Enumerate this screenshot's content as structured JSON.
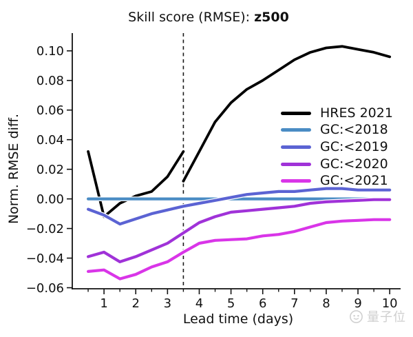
{
  "chart_data": {
    "type": "line",
    "title": "Skill score (RMSE): z500",
    "title_prefix": "Skill score (RMSE): ",
    "title_variable": "z500",
    "xlabel": "Lead time (days)",
    "ylabel": "Norm. RMSE diff.",
    "xlim": [
      0,
      10.3
    ],
    "ylim": [
      -0.0607,
      0.112
    ],
    "grid": false,
    "legend_position": "center-right",
    "x_major_ticks": [
      1,
      2,
      3,
      4,
      5,
      6,
      7,
      8,
      9,
      10
    ],
    "x_tick_labels": [
      "1",
      "2",
      "3",
      "4",
      "5",
      "6",
      "7",
      "8",
      "9",
      "10"
    ],
    "x_minor_tick_step": 0.5,
    "y_major_ticks": [
      0.1,
      0.08,
      0.06,
      0.04,
      0.02,
      0.0,
      -0.02,
      -0.04,
      -0.06
    ],
    "y_tick_labels": [
      "0.10",
      "0.08",
      "0.06",
      "0.04",
      "0.02",
      "0.00",
      "−0.02",
      "−0.04",
      "−0.06"
    ],
    "vline": {
      "x": 3.5,
      "style": "dashed",
      "color": "#1a1a1a"
    },
    "x": [
      0.5,
      1,
      1.5,
      2,
      2.5,
      3,
      3.5,
      4,
      4.5,
      5,
      5.5,
      6,
      6.5,
      7,
      7.5,
      8,
      8.5,
      9,
      9.5,
      10
    ],
    "series": [
      {
        "name": "HRES 2021",
        "color": "#000000",
        "linewidth": 3.8,
        "segments": [
          {
            "x": [
              0.5,
              1,
              1.5,
              2,
              2.5,
              3,
              3.5
            ],
            "y": [
              0.032,
              -0.012,
              -0.003,
              0.002,
              0.005,
              0.015,
              0.032
            ]
          },
          {
            "x": [
              3.5,
              4,
              4.5,
              5,
              5.5,
              6,
              6.5,
              7,
              7.5,
              8,
              8.5,
              9,
              9.5,
              10
            ],
            "y": [
              0.012,
              0.032,
              0.052,
              0.065,
              0.074,
              0.08,
              0.087,
              0.094,
              0.099,
              0.102,
              0.103,
              0.101,
              0.099,
              0.096
            ]
          }
        ]
      },
      {
        "name": "GC:<2018",
        "color": "#4a8cc4",
        "linewidth": 4.2,
        "segments": [
          {
            "x": [
              0.5,
              1,
              1.5,
              2,
              2.5,
              3,
              3.5,
              4,
              4.5,
              5,
              5.5,
              6,
              6.5,
              7,
              7.5,
              8,
              8.5,
              9,
              9.5,
              10
            ],
            "y": [
              0.0,
              0.0,
              0.0,
              0.0,
              0.0,
              0.0,
              0.0,
              0.0,
              0.0,
              0.0,
              0.0,
              0.0,
              0.0,
              0.0,
              0.0,
              0.0,
              0.0,
              0.0,
              0.0,
              0.0
            ]
          }
        ]
      },
      {
        "name": "GC:<2019",
        "color": "#5b63d3",
        "linewidth": 4.2,
        "segments": [
          {
            "x": [
              0.5,
              1,
              1.5,
              2,
              2.5,
              3,
              3.5,
              4,
              4.5,
              5,
              5.5,
              6,
              6.5,
              7,
              7.5,
              8,
              8.5,
              9,
              9.5,
              10
            ],
            "y": [
              -0.007,
              -0.011,
              -0.017,
              -0.0135,
              -0.01,
              -0.0075,
              -0.005,
              -0.003,
              -0.001,
              0.001,
              0.003,
              0.004,
              0.005,
              0.005,
              0.006,
              0.007,
              0.007,
              0.006,
              0.006,
              0.006
            ]
          }
        ]
      },
      {
        "name": "GC:<2020",
        "color": "#a032d8",
        "linewidth": 4.2,
        "segments": [
          {
            "x": [
              0.5,
              1,
              1.5,
              2,
              2.5,
              3,
              3.5,
              4,
              4.5,
              5,
              5.5,
              6,
              6.5,
              7,
              7.5,
              8,
              8.5,
              9,
              9.5,
              10
            ],
            "y": [
              -0.039,
              -0.036,
              -0.0425,
              -0.039,
              -0.0345,
              -0.03,
              -0.023,
              -0.016,
              -0.012,
              -0.009,
              -0.008,
              -0.007,
              -0.006,
              -0.005,
              -0.003,
              -0.002,
              -0.0015,
              -0.001,
              -0.0005,
              -0.0005
            ]
          }
        ]
      },
      {
        "name": "GC:<2021",
        "color": "#d935e8",
        "linewidth": 4.2,
        "segments": [
          {
            "x": [
              0.5,
              1,
              1.5,
              2,
              2.5,
              3,
              3.5,
              4,
              4.5,
              5,
              5.5,
              6,
              6.5,
              7,
              7.5,
              8,
              8.5,
              9,
              9.5,
              10
            ],
            "y": [
              -0.049,
              -0.048,
              -0.054,
              -0.051,
              -0.046,
              -0.0425,
              -0.036,
              -0.03,
              -0.028,
              -0.0275,
              -0.027,
              -0.025,
              -0.024,
              -0.022,
              -0.019,
              -0.016,
              -0.015,
              -0.0145,
              -0.014,
              -0.014
            ]
          }
        ]
      }
    ]
  },
  "watermark": {
    "text": "量子位"
  }
}
